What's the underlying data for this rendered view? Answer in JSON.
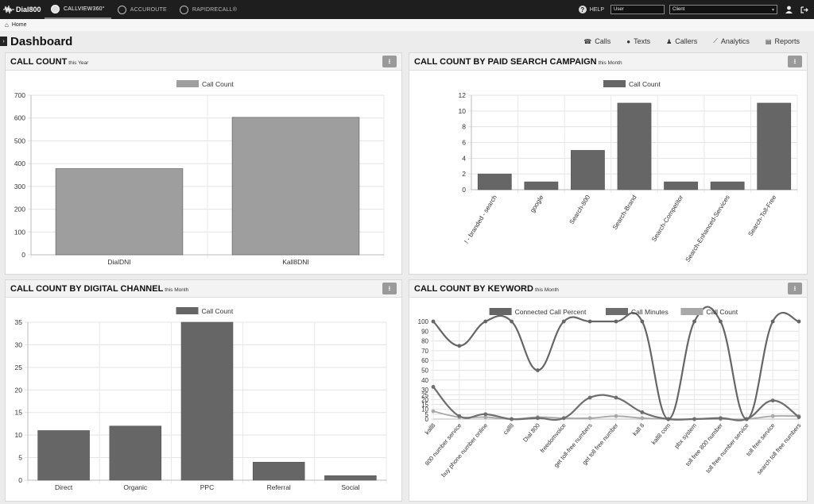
{
  "topbar": {
    "logo_text": "Dial800",
    "nav": [
      {
        "label": "CALLVIEW360°",
        "active": true
      },
      {
        "label": "ACCUROUTE",
        "active": false
      },
      {
        "label": "RAPIDRECALL®",
        "active": false
      }
    ],
    "help_label": "HELP",
    "user_select": "User",
    "client_select": "Client",
    "icons": [
      "help-icon",
      "user-icon",
      "logout-icon"
    ]
  },
  "breadcrumb": {
    "home_label": "Home"
  },
  "page": {
    "title": "Dashboard",
    "nav": [
      {
        "label": "Calls",
        "icon": "phone-icon"
      },
      {
        "label": "Texts",
        "icon": "chat-icon"
      },
      {
        "label": "Callers",
        "icon": "users-icon"
      },
      {
        "label": "Analytics",
        "icon": "line-chart-icon"
      },
      {
        "label": "Reports",
        "icon": "document-icon"
      }
    ]
  },
  "panels": {
    "p1": {
      "title": "CALL COUNT",
      "subtitle": "this Year"
    },
    "p2": {
      "title": "CALL COUNT BY PAID SEARCH CAMPAIGN",
      "subtitle": "this Month"
    },
    "p3": {
      "title": "CALL COUNT BY DIGITAL CHANNEL",
      "subtitle": "this Month"
    },
    "p4": {
      "title": "CALL COUNT BY KEYWORD",
      "subtitle": "this Month"
    }
  },
  "colors": {
    "bar_light": "#9e9e9e",
    "bar_dark": "#666666",
    "line_dark": "#666666",
    "line_mid": "#6e6e6e",
    "line_light": "#a8a8a8"
  },
  "chart_data": [
    {
      "type": "bar",
      "categories": [
        "DialDNI",
        "Kall8DNI"
      ],
      "series": [
        {
          "name": "Call Count",
          "values": [
            378,
            603
          ]
        }
      ],
      "ylim": [
        0,
        700
      ],
      "yticks": [
        0,
        100,
        200,
        300,
        400,
        500,
        600,
        700
      ],
      "legend": "top",
      "grid": true
    },
    {
      "type": "bar",
      "categories": [
        "! - branded - search",
        "google",
        "Search-800",
        "Search-Brand",
        "Search-Competitor",
        "Search-Enhanced-Services",
        "Search-Toll-Free"
      ],
      "series": [
        {
          "name": "Call Count",
          "values": [
            2,
            1,
            5,
            11,
            1,
            1,
            11
          ]
        }
      ],
      "ylim": [
        0,
        12
      ],
      "yticks": [
        0,
        2,
        4,
        6,
        8,
        10,
        12
      ],
      "legend": "top",
      "grid": true
    },
    {
      "type": "bar",
      "categories": [
        "Direct",
        "Organic",
        "PPC",
        "Referral",
        "Social"
      ],
      "series": [
        {
          "name": "Call Count",
          "values": [
            11,
            12,
            35,
            4,
            1
          ]
        }
      ],
      "ylim": [
        0,
        35
      ],
      "yticks": [
        0,
        5,
        10,
        15,
        20,
        25,
        30,
        35
      ],
      "legend": "top",
      "grid": true
    },
    {
      "type": "line",
      "categories": [
        "kall8",
        "800 number service",
        "buy phone number online",
        "call8",
        "Dial 800",
        "freedomvoice",
        "get toll-free numbers",
        "get toll free number",
        "kall 8",
        "kall8 com",
        "pbx system",
        "toll free 800 number",
        "toll free number service",
        "toll free service",
        "search toll free numbers"
      ],
      "series": [
        {
          "name": "Connected Call Percent",
          "values": [
            100,
            75,
            100,
            100,
            50,
            100,
            100,
            100,
            100,
            0,
            100,
            100,
            0,
            100,
            100
          ]
        },
        {
          "name": "Call Minutes",
          "values": [
            33,
            3,
            5,
            0,
            1,
            1,
            22,
            22,
            7,
            0,
            0,
            1,
            0,
            19,
            2
          ]
        },
        {
          "name": "Call Count",
          "values": [
            8,
            2,
            2,
            0,
            2,
            1,
            1,
            3,
            1,
            0,
            0,
            0,
            0,
            3,
            3
          ]
        }
      ],
      "ylim": [
        0,
        100
      ],
      "yticks": [
        0,
        5,
        10,
        15,
        20,
        25,
        30,
        40,
        50,
        60,
        70,
        80,
        90,
        100
      ],
      "legend": "top",
      "grid": true
    }
  ]
}
